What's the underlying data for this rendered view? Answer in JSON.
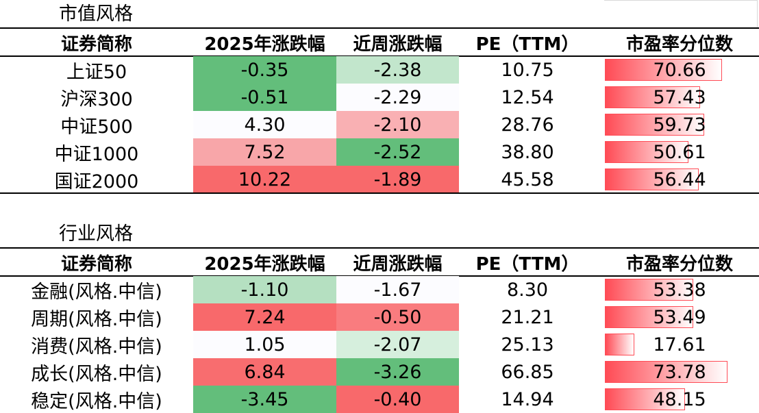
{
  "colors": {
    "green_strong": "#63be7b",
    "green_light": "#c2e6cc",
    "green_pale": "#d6efdd",
    "white_cell": "#fcfcff",
    "red_light": "#f9b0b3",
    "red_mid": "#f8a6a9",
    "red_strong": "#f8696b",
    "red_medium": "#f97c7f",
    "bar_red": "#ff4b55"
  },
  "sections": [
    {
      "title": "市值风格",
      "headers": [
        "证券简称",
        "2025年涨跌幅",
        "近周涨跌幅",
        "PE（TTM）",
        "市盈率分位数"
      ],
      "rows": [
        {
          "name": "上证50",
          "ytd": "-0.35",
          "ytd_bg": "#63be7b",
          "wk": "-2.38",
          "wk_bg": "#c2e6cc",
          "pe": "10.75",
          "pct": "70.66",
          "pct_value": 70.66
        },
        {
          "name": "沪深300",
          "ytd": "-0.51",
          "ytd_bg": "#63be7b",
          "wk": "-2.29",
          "wk_bg": "#fcfcff",
          "pe": "12.54",
          "pct": "57.43",
          "pct_value": 57.43
        },
        {
          "name": "中证500",
          "ytd": "4.30",
          "ytd_bg": "#fcfcff",
          "wk": "-2.10",
          "wk_bg": "#f9b0b3",
          "pe": "28.76",
          "pct": "59.73",
          "pct_value": 59.73
        },
        {
          "name": "中证1000",
          "ytd": "7.52",
          "ytd_bg": "#f8a6a9",
          "wk": "-2.52",
          "wk_bg": "#63be7b",
          "pe": "38.80",
          "pct": "50.61",
          "pct_value": 50.61
        },
        {
          "name": "国证2000",
          "ytd": "10.22",
          "ytd_bg": "#f8696b",
          "wk": "-1.89",
          "wk_bg": "#f8696b",
          "pe": "45.58",
          "pct": "56.44",
          "pct_value": 56.44
        }
      ]
    },
    {
      "title": "行业风格",
      "headers": [
        "证券简称",
        "2025年涨跌幅",
        "近周涨跌幅",
        "PE（TTM）",
        "市盈率分位数"
      ],
      "rows": [
        {
          "name": "金融(风格.中信)",
          "ytd": "-1.10",
          "ytd_bg": "#b5e0c1",
          "wk": "-1.67",
          "wk_bg": "#fcfcff",
          "pe": "8.30",
          "pct": "53.38",
          "pct_value": 53.38
        },
        {
          "name": "周期(风格.中信)",
          "ytd": "7.24",
          "ytd_bg": "#f8696b",
          "wk": "-0.50",
          "wk_bg": "#f97c7f",
          "pe": "21.21",
          "pct": "53.49",
          "pct_value": 53.49
        },
        {
          "name": "消费(风格.中信)",
          "ytd": "1.05",
          "ytd_bg": "#fcfcff",
          "wk": "-2.07",
          "wk_bg": "#d6efdd",
          "pe": "25.13",
          "pct": "17.61",
          "pct_value": 17.61
        },
        {
          "name": "成长(风格.中信)",
          "ytd": "6.84",
          "ytd_bg": "#f86d6f",
          "wk": "-3.26",
          "wk_bg": "#63be7b",
          "pe": "66.85",
          "pct": "73.78",
          "pct_value": 73.78
        },
        {
          "name": "稳定(风格.中信)",
          "ytd": "-3.45",
          "ytd_bg": "#63be7b",
          "wk": "-0.40",
          "wk_bg": "#f8696b",
          "pe": "14.94",
          "pct": "48.15",
          "pct_value": 48.15
        }
      ]
    }
  ]
}
